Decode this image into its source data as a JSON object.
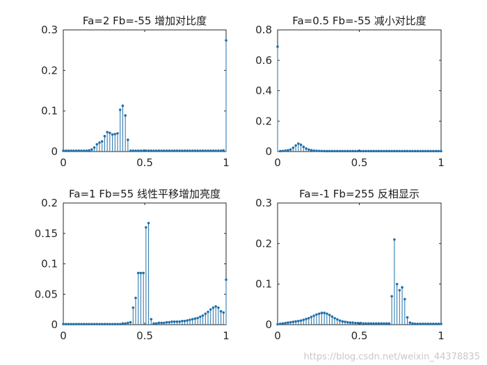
{
  "chart_data": [
    {
      "type": "stem",
      "title": "Fa=2 Fb=-55 增加对比度",
      "xlim": [
        0,
        1
      ],
      "ylim": [
        0,
        0.3
      ],
      "xticks": [
        0,
        0.5,
        1
      ],
      "xtick_labels": [
        "0",
        "0.5",
        "1"
      ],
      "yticks": [
        0,
        0.1,
        0.2,
        0.3
      ],
      "ytick_labels": [
        "0",
        "0.1",
        "0.2",
        "0.3"
      ],
      "x": [
        0,
        0.0159,
        0.0317,
        0.0476,
        0.0635,
        0.0794,
        0.0952,
        0.1111,
        0.127,
        0.1429,
        0.1587,
        0.1746,
        0.1905,
        0.2063,
        0.2222,
        0.2381,
        0.254,
        0.2698,
        0.2857,
        0.3016,
        0.3175,
        0.3333,
        0.3492,
        0.3651,
        0.381,
        0.3968,
        0.4127,
        0.4286,
        0.4444,
        0.4603,
        0.4762,
        0.4921,
        0.5079,
        0.5238,
        0.5397,
        0.5556,
        0.5714,
        0.5873,
        0.6032,
        0.619,
        0.6349,
        0.6508,
        0.6667,
        0.6825,
        0.6984,
        0.7143,
        0.7302,
        0.746,
        0.7619,
        0.7778,
        0.7937,
        0.8095,
        0.8254,
        0.8413,
        0.8571,
        0.873,
        0.8889,
        0.9048,
        0.9206,
        0.9365,
        0.9524,
        0.9683,
        0.9841,
        1
      ],
      "y": [
        0.002,
        0.002,
        0.002,
        0.002,
        0.002,
        0.002,
        0.002,
        0.002,
        0.002,
        0.002,
        0.003,
        0.005,
        0.01,
        0.018,
        0.022,
        0.025,
        0.038,
        0.048,
        0.046,
        0.042,
        0.043,
        0.045,
        0.103,
        0.113,
        0.089,
        0.029,
        0.002,
        0.002,
        0.002,
        0.002,
        0.002,
        0.002,
        0.002,
        0.002,
        0.002,
        0.002,
        0.002,
        0.002,
        0.002,
        0.002,
        0.002,
        0.002,
        0.002,
        0.002,
        0.002,
        0.002,
        0.002,
        0.002,
        0.002,
        0.002,
        0.002,
        0.002,
        0.002,
        0.002,
        0.002,
        0.002,
        0.002,
        0.002,
        0.002,
        0.002,
        0.002,
        0.002,
        0.003,
        0.274
      ]
    },
    {
      "type": "stem",
      "title": "Fa=0.5 Fb=-55 减小对比度",
      "xlim": [
        0,
        1
      ],
      "ylim": [
        0,
        0.8
      ],
      "xticks": [
        0,
        0.5,
        1
      ],
      "xtick_labels": [
        "0",
        "0.5",
        "1"
      ],
      "yticks": [
        0,
        0.2,
        0.4,
        0.6,
        0.8
      ],
      "ytick_labels": [
        "0",
        "0.2",
        "0.4",
        "0.6",
        "0.8"
      ],
      "x": [
        0,
        0.0159,
        0.0317,
        0.0476,
        0.0635,
        0.0794,
        0.0952,
        0.1111,
        0.127,
        0.1429,
        0.1587,
        0.1746,
        0.1905,
        0.2063,
        0.2222,
        0.2381,
        0.254,
        0.2698,
        0.2857,
        0.3016,
        0.3175,
        0.3333,
        0.3492,
        0.3651,
        0.381,
        0.3968,
        0.4127,
        0.4286,
        0.4444,
        0.4603,
        0.4762,
        0.4921,
        0.5079,
        0.5238,
        0.5397,
        0.5556,
        0.5714,
        0.5873,
        0.6032,
        0.619,
        0.6349,
        0.6508,
        0.6667,
        0.6825,
        0.6984,
        0.7143,
        0.7302,
        0.746,
        0.7619,
        0.7778,
        0.7937,
        0.8095,
        0.8254,
        0.8413,
        0.8571,
        0.873,
        0.8889,
        0.9048,
        0.9206,
        0.9365,
        0.9524,
        0.9683,
        0.9841,
        1
      ],
      "y": [
        0.69,
        0.003,
        0.004,
        0.006,
        0.009,
        0.013,
        0.025,
        0.04,
        0.052,
        0.045,
        0.031,
        0.02,
        0.013,
        0.009,
        0.006,
        0.005,
        0.004,
        0.004,
        0.003,
        0.003,
        0.003,
        0.003,
        0.003,
        0.003,
        0.003,
        0.003,
        0.003,
        0.003,
        0.003,
        0.003,
        0.003,
        0.003,
        0.003,
        0.003,
        0.003,
        0.003,
        0.003,
        0.003,
        0.003,
        0.003,
        0.003,
        0.003,
        0.003,
        0.003,
        0.003,
        0.003,
        0.003,
        0.003,
        0.003,
        0.003,
        0.003,
        0.003,
        0.003,
        0.003,
        0.003,
        0.003,
        0.003,
        0.003,
        0.003,
        0.003,
        0.003,
        0.003,
        0.003,
        0.003
      ]
    },
    {
      "type": "stem",
      "title": "Fa=1 Fb=55 线性平移增加亮度",
      "xlim": [
        0,
        1
      ],
      "ylim": [
        0,
        0.2
      ],
      "xticks": [
        0,
        0.5,
        1
      ],
      "xtick_labels": [
        "0",
        "0.5",
        "1"
      ],
      "yticks": [
        0,
        0.05,
        0.1,
        0.15,
        0.2
      ],
      "ytick_labels": [
        "0",
        "0.05",
        "0.1",
        "0.15",
        "0.2"
      ],
      "x": [
        0,
        0.0159,
        0.0317,
        0.0476,
        0.0635,
        0.0794,
        0.0952,
        0.1111,
        0.127,
        0.1429,
        0.1587,
        0.1746,
        0.1905,
        0.2063,
        0.2222,
        0.2381,
        0.254,
        0.2698,
        0.2857,
        0.3016,
        0.3175,
        0.3333,
        0.3492,
        0.3651,
        0.381,
        0.3968,
        0.4127,
        0.4286,
        0.4444,
        0.4603,
        0.4762,
        0.4921,
        0.5079,
        0.5238,
        0.5397,
        0.5556,
        0.5714,
        0.5873,
        0.6032,
        0.619,
        0.6349,
        0.6508,
        0.6667,
        0.6825,
        0.6984,
        0.7143,
        0.7302,
        0.746,
        0.7619,
        0.7778,
        0.7937,
        0.8095,
        0.8254,
        0.8413,
        0.8571,
        0.873,
        0.8889,
        0.9048,
        0.9206,
        0.9365,
        0.9524,
        0.9683,
        0.9841,
        1
      ],
      "y": [
        0.001,
        0.001,
        0.001,
        0.001,
        0.001,
        0.001,
        0.001,
        0.001,
        0.001,
        0.001,
        0.001,
        0.001,
        0.001,
        0.001,
        0.001,
        0.001,
        0.001,
        0.001,
        0.001,
        0.001,
        0.001,
        0.001,
        0.001,
        0.002,
        0.002,
        0.003,
        0.004,
        0.028,
        0.044,
        0.085,
        0.085,
        0.085,
        0.16,
        0.167,
        0.009,
        0.002,
        0.002,
        0.003,
        0.003,
        0.003,
        0.004,
        0.004,
        0.005,
        0.005,
        0.005,
        0.005,
        0.006,
        0.006,
        0.007,
        0.008,
        0.009,
        0.01,
        0.011,
        0.013,
        0.015,
        0.018,
        0.021,
        0.025,
        0.028,
        0.03,
        0.028,
        0.022,
        0.02,
        0.074
      ]
    },
    {
      "type": "stem",
      "title": "Fa=-1 Fb=255 反相显示",
      "xlim": [
        0,
        1
      ],
      "ylim": [
        0,
        0.3
      ],
      "xticks": [
        0,
        0.5,
        1
      ],
      "xtick_labels": [
        "0",
        "0.5",
        "1"
      ],
      "yticks": [
        0,
        0.1,
        0.2,
        0.3
      ],
      "ytick_labels": [
        "0",
        "0.1",
        "0.2",
        "0.3"
      ],
      "x": [
        0,
        0.0159,
        0.0317,
        0.0476,
        0.0635,
        0.0794,
        0.0952,
        0.1111,
        0.127,
        0.1429,
        0.1587,
        0.1746,
        0.1905,
        0.2063,
        0.2222,
        0.2381,
        0.254,
        0.2698,
        0.2857,
        0.3016,
        0.3175,
        0.3333,
        0.3492,
        0.3651,
        0.381,
        0.3968,
        0.4127,
        0.4286,
        0.4444,
        0.4603,
        0.4762,
        0.4921,
        0.5079,
        0.5238,
        0.5397,
        0.5556,
        0.5714,
        0.5873,
        0.6032,
        0.619,
        0.6349,
        0.6508,
        0.6667,
        0.6825,
        0.6984,
        0.7143,
        0.7302,
        0.746,
        0.7619,
        0.7778,
        0.7937,
        0.8095,
        0.8254,
        0.8413,
        0.8571,
        0.873,
        0.8889,
        0.9048,
        0.9206,
        0.9365,
        0.9524,
        0.9683,
        0.9841,
        1
      ],
      "y": [
        0.001,
        0.002,
        0.003,
        0.004,
        0.005,
        0.006,
        0.007,
        0.008,
        0.009,
        0.01,
        0.012,
        0.014,
        0.016,
        0.019,
        0.022,
        0.025,
        0.027,
        0.029,
        0.029,
        0.027,
        0.024,
        0.02,
        0.016,
        0.013,
        0.01,
        0.008,
        0.007,
        0.006,
        0.005,
        0.005,
        0.004,
        0.004,
        0.004,
        0.003,
        0.003,
        0.003,
        0.003,
        0.003,
        0.003,
        0.003,
        0.003,
        0.003,
        0.003,
        0.003,
        0.07,
        0.21,
        0.1,
        0.085,
        0.092,
        0.063,
        0.018,
        0.005,
        0.003,
        0.002,
        0.002,
        0.002,
        0.002,
        0.002,
        0.002,
        0.002,
        0.002,
        0.002,
        0.002,
        0.002
      ]
    }
  ],
  "watermark": "https://blog.csdn.net/weixin_44378835"
}
